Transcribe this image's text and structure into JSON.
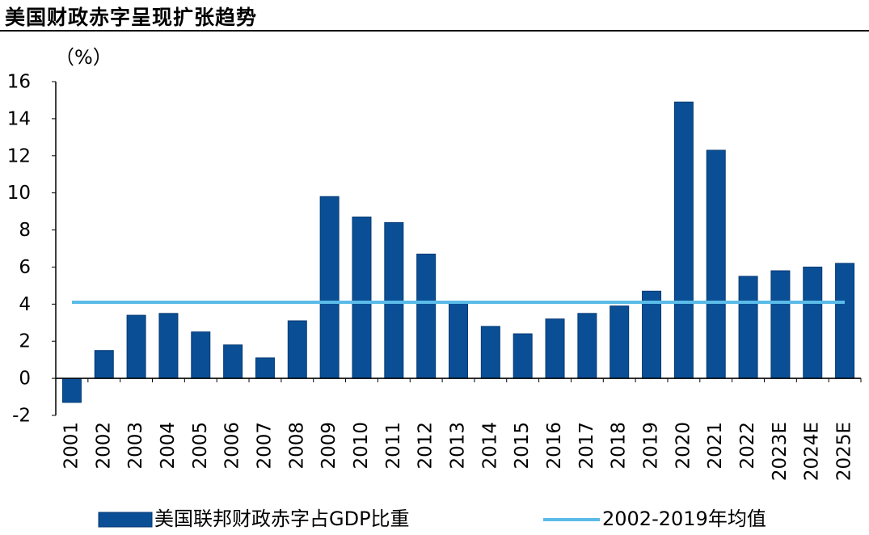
{
  "title": "美国财政赤字呈现扩张趋势",
  "colors": {
    "bar": "#0a4f96",
    "bar_edge": "#063a73",
    "avg_line": "#5bbbe8",
    "axis": "#000000"
  },
  "chart_data": {
    "type": "bar",
    "unit_label": "（%）",
    "categories": [
      "2001",
      "2002",
      "2003",
      "2004",
      "2005",
      "2006",
      "2007",
      "2008",
      "2009",
      "2010",
      "2011",
      "2012",
      "2013",
      "2014",
      "2015",
      "2016",
      "2017",
      "2018",
      "2019",
      "2020",
      "2021",
      "2022",
      "2023E",
      "2024E",
      "2025E"
    ],
    "series": [
      {
        "name": "美国联邦财政赤字占GDP比重",
        "values": [
          -1.3,
          1.5,
          3.4,
          3.5,
          2.5,
          1.8,
          1.1,
          3.1,
          9.8,
          8.7,
          8.4,
          6.7,
          4.1,
          2.8,
          2.4,
          3.2,
          3.5,
          3.9,
          4.7,
          14.9,
          12.3,
          5.5,
          5.8,
          6.0,
          6.2
        ]
      }
    ],
    "reference_line": {
      "name": "2002-2019年均值",
      "value": 4.1
    },
    "yticks": [
      "16",
      "14",
      "12",
      "10",
      "8",
      "6",
      "4",
      "2",
      "0",
      "-2"
    ],
    "ylim": [
      -2,
      16
    ],
    "legend": [
      "美国联邦财政赤字占GDP比重",
      "2002-2019年均值"
    ]
  }
}
